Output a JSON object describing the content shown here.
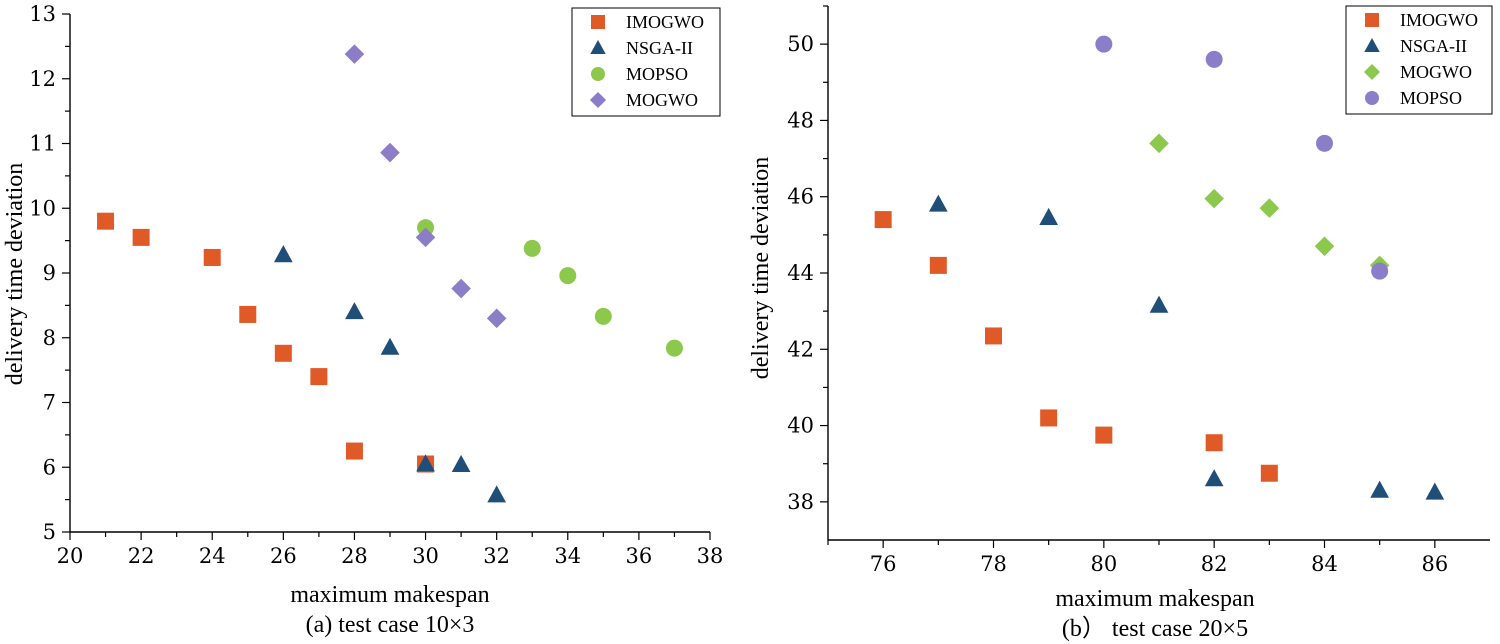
{
  "chart_data": [
    {
      "type": "scatter",
      "caption": "(a) test case 10×3",
      "xlabel": "maximum makespan",
      "ylabel": "delivery time deviation",
      "xlim": [
        20,
        38
      ],
      "ylim": [
        5,
        13
      ],
      "xticks": [
        20,
        22,
        24,
        26,
        28,
        30,
        32,
        34,
        36,
        38
      ],
      "yticks": [
        5,
        6,
        7,
        8,
        9,
        10,
        11,
        12,
        13
      ],
      "legend_position": "top-right",
      "series": [
        {
          "name": "IMOGWO",
          "marker": "square",
          "color": "#E05A28",
          "points": [
            [
              21,
              9.8
            ],
            [
              22,
              9.55
            ],
            [
              24,
              9.24
            ],
            [
              25,
              8.36
            ],
            [
              26,
              7.76
            ],
            [
              27,
              7.4
            ],
            [
              28,
              6.25
            ],
            [
              30,
              6.05
            ]
          ]
        },
        {
          "name": "NSGA-II",
          "marker": "triangle",
          "color": "#1F4E79",
          "points": [
            [
              26,
              9.28
            ],
            [
              28,
              8.4
            ],
            [
              29,
              7.85
            ],
            [
              30,
              6.05
            ],
            [
              31,
              6.04
            ],
            [
              32,
              5.57
            ]
          ]
        },
        {
          "name": "MOPSO",
          "marker": "circle",
          "color": "#8CC84B",
          "points": [
            [
              30,
              9.7
            ],
            [
              33,
              9.38
            ],
            [
              34,
              8.96
            ],
            [
              35,
              8.33
            ],
            [
              37,
              7.84
            ]
          ]
        },
        {
          "name": "MOGWO",
          "marker": "diamond",
          "color": "#8B7DC8",
          "points": [
            [
              28,
              12.38
            ],
            [
              29,
              10.86
            ],
            [
              30,
              9.55
            ],
            [
              31,
              8.76
            ],
            [
              32,
              8.3
            ]
          ]
        }
      ]
    },
    {
      "type": "scatter",
      "caption": "(b） test case 20×5",
      "xlabel": "maximum makespan",
      "ylabel": "delivery time deviation",
      "xlim": [
        75,
        87
      ],
      "ylim": [
        37,
        51
      ],
      "xticks": [
        76,
        78,
        80,
        82,
        84,
        86
      ],
      "yticks": [
        38,
        40,
        42,
        44,
        46,
        48,
        50
      ],
      "legend_position": "top-right",
      "series": [
        {
          "name": "IMOGWO",
          "marker": "square",
          "color": "#E05A28",
          "points": [
            [
              76,
              45.4
            ],
            [
              77,
              44.2
            ],
            [
              78,
              42.35
            ],
            [
              79,
              40.2
            ],
            [
              80,
              39.75
            ],
            [
              82,
              39.55
            ],
            [
              83,
              38.75
            ]
          ]
        },
        {
          "name": "NSGA-II",
          "marker": "triangle",
          "color": "#1F4E79",
          "points": [
            [
              77,
              45.8
            ],
            [
              79,
              45.45
            ],
            [
              81,
              43.15
            ],
            [
              82,
              38.6
            ],
            [
              85,
              38.3
            ],
            [
              86,
              38.25
            ]
          ]
        },
        {
          "name": "MOGWO",
          "marker": "diamond",
          "color": "#8CC84B",
          "points": [
            [
              81,
              47.4
            ],
            [
              82,
              45.95
            ],
            [
              83,
              45.7
            ],
            [
              84,
              44.7
            ],
            [
              85,
              44.2
            ]
          ]
        },
        {
          "name": "MOPSO",
          "marker": "circle",
          "color": "#8B7DC8",
          "points": [
            [
              80,
              50.0
            ],
            [
              82,
              49.6
            ],
            [
              84,
              47.4
            ],
            [
              85,
              44.05
            ]
          ]
        }
      ]
    }
  ]
}
